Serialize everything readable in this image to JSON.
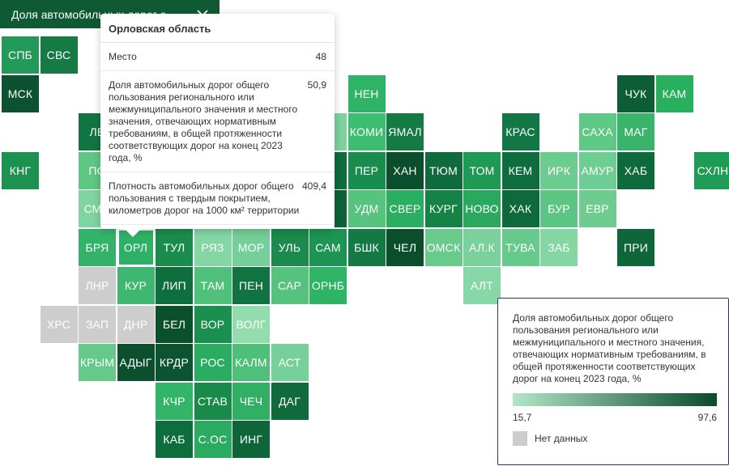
{
  "dropdown": {
    "label": "Доля автомобильных дорог о...",
    "icon": "chevron-down-icon"
  },
  "tooltip": {
    "region": "Орловская область",
    "rows": [
      {
        "label": "Место",
        "value": "48"
      },
      {
        "label": "Доля автомобильных дорог общего пользования регионального или межмуниципального значения и местного значения, отвечающих нормативным требованиям, в общей протяженности соответствующих дорог на конец 2023 года, %",
        "value": "50,9"
      },
      {
        "label": "Плотность автомобильных дорог общего пользования с твердым покрытием, километров дорог на 1000 км² территории",
        "value": "409,4"
      }
    ]
  },
  "legend": {
    "title": "Доля автомобильных дорог общего пользования регионального или межмуниципального и местного значения, отвечающих нормативным требованиям, в общей протяженности соответствующих дорог на конец 2023 года, %",
    "min_label": "15,7",
    "max_label": "97,6",
    "min_color": "#b2e6c6",
    "max_color": "#0a4a2b",
    "nodata_label": "Нет данных",
    "nodata_color": "#cdcdcd"
  },
  "selected_region": "ОРЛ",
  "tiles": [
    {
      "label": "СПБ",
      "col": 0,
      "row": 0,
      "color": "#239a59"
    },
    {
      "label": "СВС",
      "col": 1,
      "row": 0,
      "color": "#157a44"
    },
    {
      "label": "МСК",
      "col": 0,
      "row": 1,
      "color": "#0c5230"
    },
    {
      "label": "НЕН",
      "col": 9,
      "row": 1,
      "color": "#2fb367"
    },
    {
      "label": "ЧУК",
      "col": 16,
      "row": 1,
      "color": "#0d5e37"
    },
    {
      "label": "КАМ",
      "col": 17,
      "row": 1,
      "color": "#28b05f"
    },
    {
      "label": "ЛЕ",
      "col": 2,
      "row": 2,
      "color": "#117542"
    },
    {
      "label": "Х",
      "col": 8,
      "row": 2,
      "color": "#7fd19e"
    },
    {
      "label": "КОМИ",
      "col": 9,
      "row": 2,
      "color": "#3cbd70"
    },
    {
      "label": "ЯМАЛ",
      "col": 10,
      "row": 2,
      "color": "#147b45"
    },
    {
      "label": "КРАС",
      "col": 13,
      "row": 2,
      "color": "#137645"
    },
    {
      "label": "САХА",
      "col": 15,
      "row": 2,
      "color": "#5ec885"
    },
    {
      "label": "МАГ",
      "col": 16,
      "row": 2,
      "color": "#3ab46b"
    },
    {
      "label": "КНГ",
      "col": 0,
      "row": 3,
      "color": "#1c9150"
    },
    {
      "label": "ПО",
      "col": 2,
      "row": 3,
      "color": "#5fc784"
    },
    {
      "label": "",
      "col": 8,
      "row": 3,
      "color": "#0f6c3c"
    },
    {
      "label": "ПЕР",
      "col": 9,
      "row": 3,
      "color": "#198d4d"
    },
    {
      "label": "ХАН",
      "col": 10,
      "row": 3,
      "color": "#0a4f2d"
    },
    {
      "label": "ТЮМ",
      "col": 11,
      "row": 3,
      "color": "#0f6a3c"
    },
    {
      "label": "ТОМ",
      "col": 12,
      "row": 3,
      "color": "#1f9a54"
    },
    {
      "label": "КЕМ",
      "col": 13,
      "row": 3,
      "color": "#0f6d3d"
    },
    {
      "label": "ИРК",
      "col": 14,
      "row": 3,
      "color": "#6ccb8e"
    },
    {
      "label": "АМУР",
      "col": 15,
      "row": 3,
      "color": "#6ecd92"
    },
    {
      "label": "ХАБ",
      "col": 16,
      "row": 3,
      "color": "#0f6a3b"
    },
    {
      "label": "СХЛН",
      "col": 18,
      "row": 3,
      "color": "#1e9b55"
    },
    {
      "label": "СМО",
      "col": 2,
      "row": 4,
      "color": "#7fd4a0"
    },
    {
      "label": "",
      "col": 3,
      "row": 4,
      "color": "#2aa862"
    },
    {
      "label": "",
      "col": 4,
      "row": 4,
      "color": "#22a05a"
    },
    {
      "label": "",
      "col": 5,
      "row": 4,
      "color": "#76cf98"
    },
    {
      "label": "",
      "col": 6,
      "row": 4,
      "color": "#5cc483"
    },
    {
      "label": "",
      "col": 7,
      "row": 4,
      "color": "#40b872"
    },
    {
      "label": "Т",
      "col": 8,
      "row": 4,
      "color": "#0d6236"
    },
    {
      "label": "УДМ",
      "col": 9,
      "row": 4,
      "color": "#56c47e"
    },
    {
      "label": "СВЕР",
      "col": 10,
      "row": 4,
      "color": "#2aae60"
    },
    {
      "label": "КУРГ",
      "col": 11,
      "row": 4,
      "color": "#158246"
    },
    {
      "label": "НОВО",
      "col": 12,
      "row": 4,
      "color": "#2aa85f"
    },
    {
      "label": "ХАК",
      "col": 13,
      "row": 4,
      "color": "#0f6a3b"
    },
    {
      "label": "БУР",
      "col": 14,
      "row": 4,
      "color": "#5cc583"
    },
    {
      "label": "ЕВР",
      "col": 15,
      "row": 4,
      "color": "#6ecc91"
    },
    {
      "label": "БРЯ",
      "col": 2,
      "row": 5,
      "color": "#33b36a"
    },
    {
      "label": "ОРЛ",
      "col": 3,
      "row": 5,
      "color": "#2db166"
    },
    {
      "label": "ТУЛ",
      "col": 4,
      "row": 5,
      "color": "#1a8d4d"
    },
    {
      "label": "РЯЗ",
      "col": 5,
      "row": 5,
      "color": "#84d6a4"
    },
    {
      "label": "МОР",
      "col": 6,
      "row": 5,
      "color": "#75cf98"
    },
    {
      "label": "УЛЬ",
      "col": 7,
      "row": 5,
      "color": "#1a8a4d"
    },
    {
      "label": "САМ",
      "col": 8,
      "row": 5,
      "color": "#1c9452"
    },
    {
      "label": "БШК",
      "col": 9,
      "row": 5,
      "color": "#147a44"
    },
    {
      "label": "ЧЕЛ",
      "col": 10,
      "row": 5,
      "color": "#0a4e2c"
    },
    {
      "label": "ОМСК",
      "col": 11,
      "row": 5,
      "color": "#68cb8b"
    },
    {
      "label": "АЛ.К",
      "col": 12,
      "row": 5,
      "color": "#7ad19c"
    },
    {
      "label": "ТУВА",
      "col": 13,
      "row": 5,
      "color": "#67c98b"
    },
    {
      "label": "ЗАБ",
      "col": 14,
      "row": 5,
      "color": "#84d6a3"
    },
    {
      "label": "ПРИ",
      "col": 16,
      "row": 5,
      "color": "#0e6739"
    },
    {
      "label": "ЛНР",
      "col": 2,
      "row": 6,
      "color": "#cdcdcd"
    },
    {
      "label": "КУР",
      "col": 3,
      "row": 6,
      "color": "#3eb871"
    },
    {
      "label": "ЛИП",
      "col": 4,
      "row": 6,
      "color": "#0f6e3d"
    },
    {
      "label": "ТАМ",
      "col": 5,
      "row": 6,
      "color": "#50c17b"
    },
    {
      "label": "ПЕН",
      "col": 6,
      "row": 6,
      "color": "#117341"
    },
    {
      "label": "САР",
      "col": 7,
      "row": 6,
      "color": "#55c27e"
    },
    {
      "label": "ОРНБ",
      "col": 8,
      "row": 6,
      "color": "#2db465"
    },
    {
      "label": "АЛТ",
      "col": 12,
      "row": 6,
      "color": "#87d8a6"
    },
    {
      "label": "ХРС",
      "col": 1,
      "row": 7,
      "color": "#cdcdcd"
    },
    {
      "label": "ЗАП",
      "col": 2,
      "row": 7,
      "color": "#cdcdcd"
    },
    {
      "label": "ДНР",
      "col": 3,
      "row": 7,
      "color": "#cdcdcd"
    },
    {
      "label": "БЕЛ",
      "col": 4,
      "row": 7,
      "color": "#0b502d"
    },
    {
      "label": "ВОР",
      "col": 5,
      "row": 7,
      "color": "#1b8f4f"
    },
    {
      "label": "ВОЛГ",
      "col": 6,
      "row": 7,
      "color": "#92dcad"
    },
    {
      "label": "КРЫМ",
      "col": 2,
      "row": 8,
      "color": "#64c989"
    },
    {
      "label": "АДЫГ",
      "col": 3,
      "row": 8,
      "color": "#0b4f2d"
    },
    {
      "label": "КРДР",
      "col": 4,
      "row": 8,
      "color": "#0c5431"
    },
    {
      "label": "РОС",
      "col": 5,
      "row": 8,
      "color": "#2aad60"
    },
    {
      "label": "КАЛМ",
      "col": 6,
      "row": 8,
      "color": "#4fc07a"
    },
    {
      "label": "АСТ",
      "col": 7,
      "row": 8,
      "color": "#77d099"
    },
    {
      "label": "КЧР",
      "col": 4,
      "row": 9,
      "color": "#32b469"
    },
    {
      "label": "СТАВ",
      "col": 5,
      "row": 9,
      "color": "#1a8a4b"
    },
    {
      "label": "ЧЕЧ",
      "col": 6,
      "row": 9,
      "color": "#2fb064"
    },
    {
      "label": "ДАГ",
      "col": 7,
      "row": 9,
      "color": "#0f6b3b"
    },
    {
      "label": "КАБ",
      "col": 4,
      "row": 10,
      "color": "#0f6c3c"
    },
    {
      "label": "С.ОС",
      "col": 5,
      "row": 10,
      "color": "#2aab5f"
    },
    {
      "label": "ИНГ",
      "col": 6,
      "row": 10,
      "color": "#0e6638"
    }
  ]
}
